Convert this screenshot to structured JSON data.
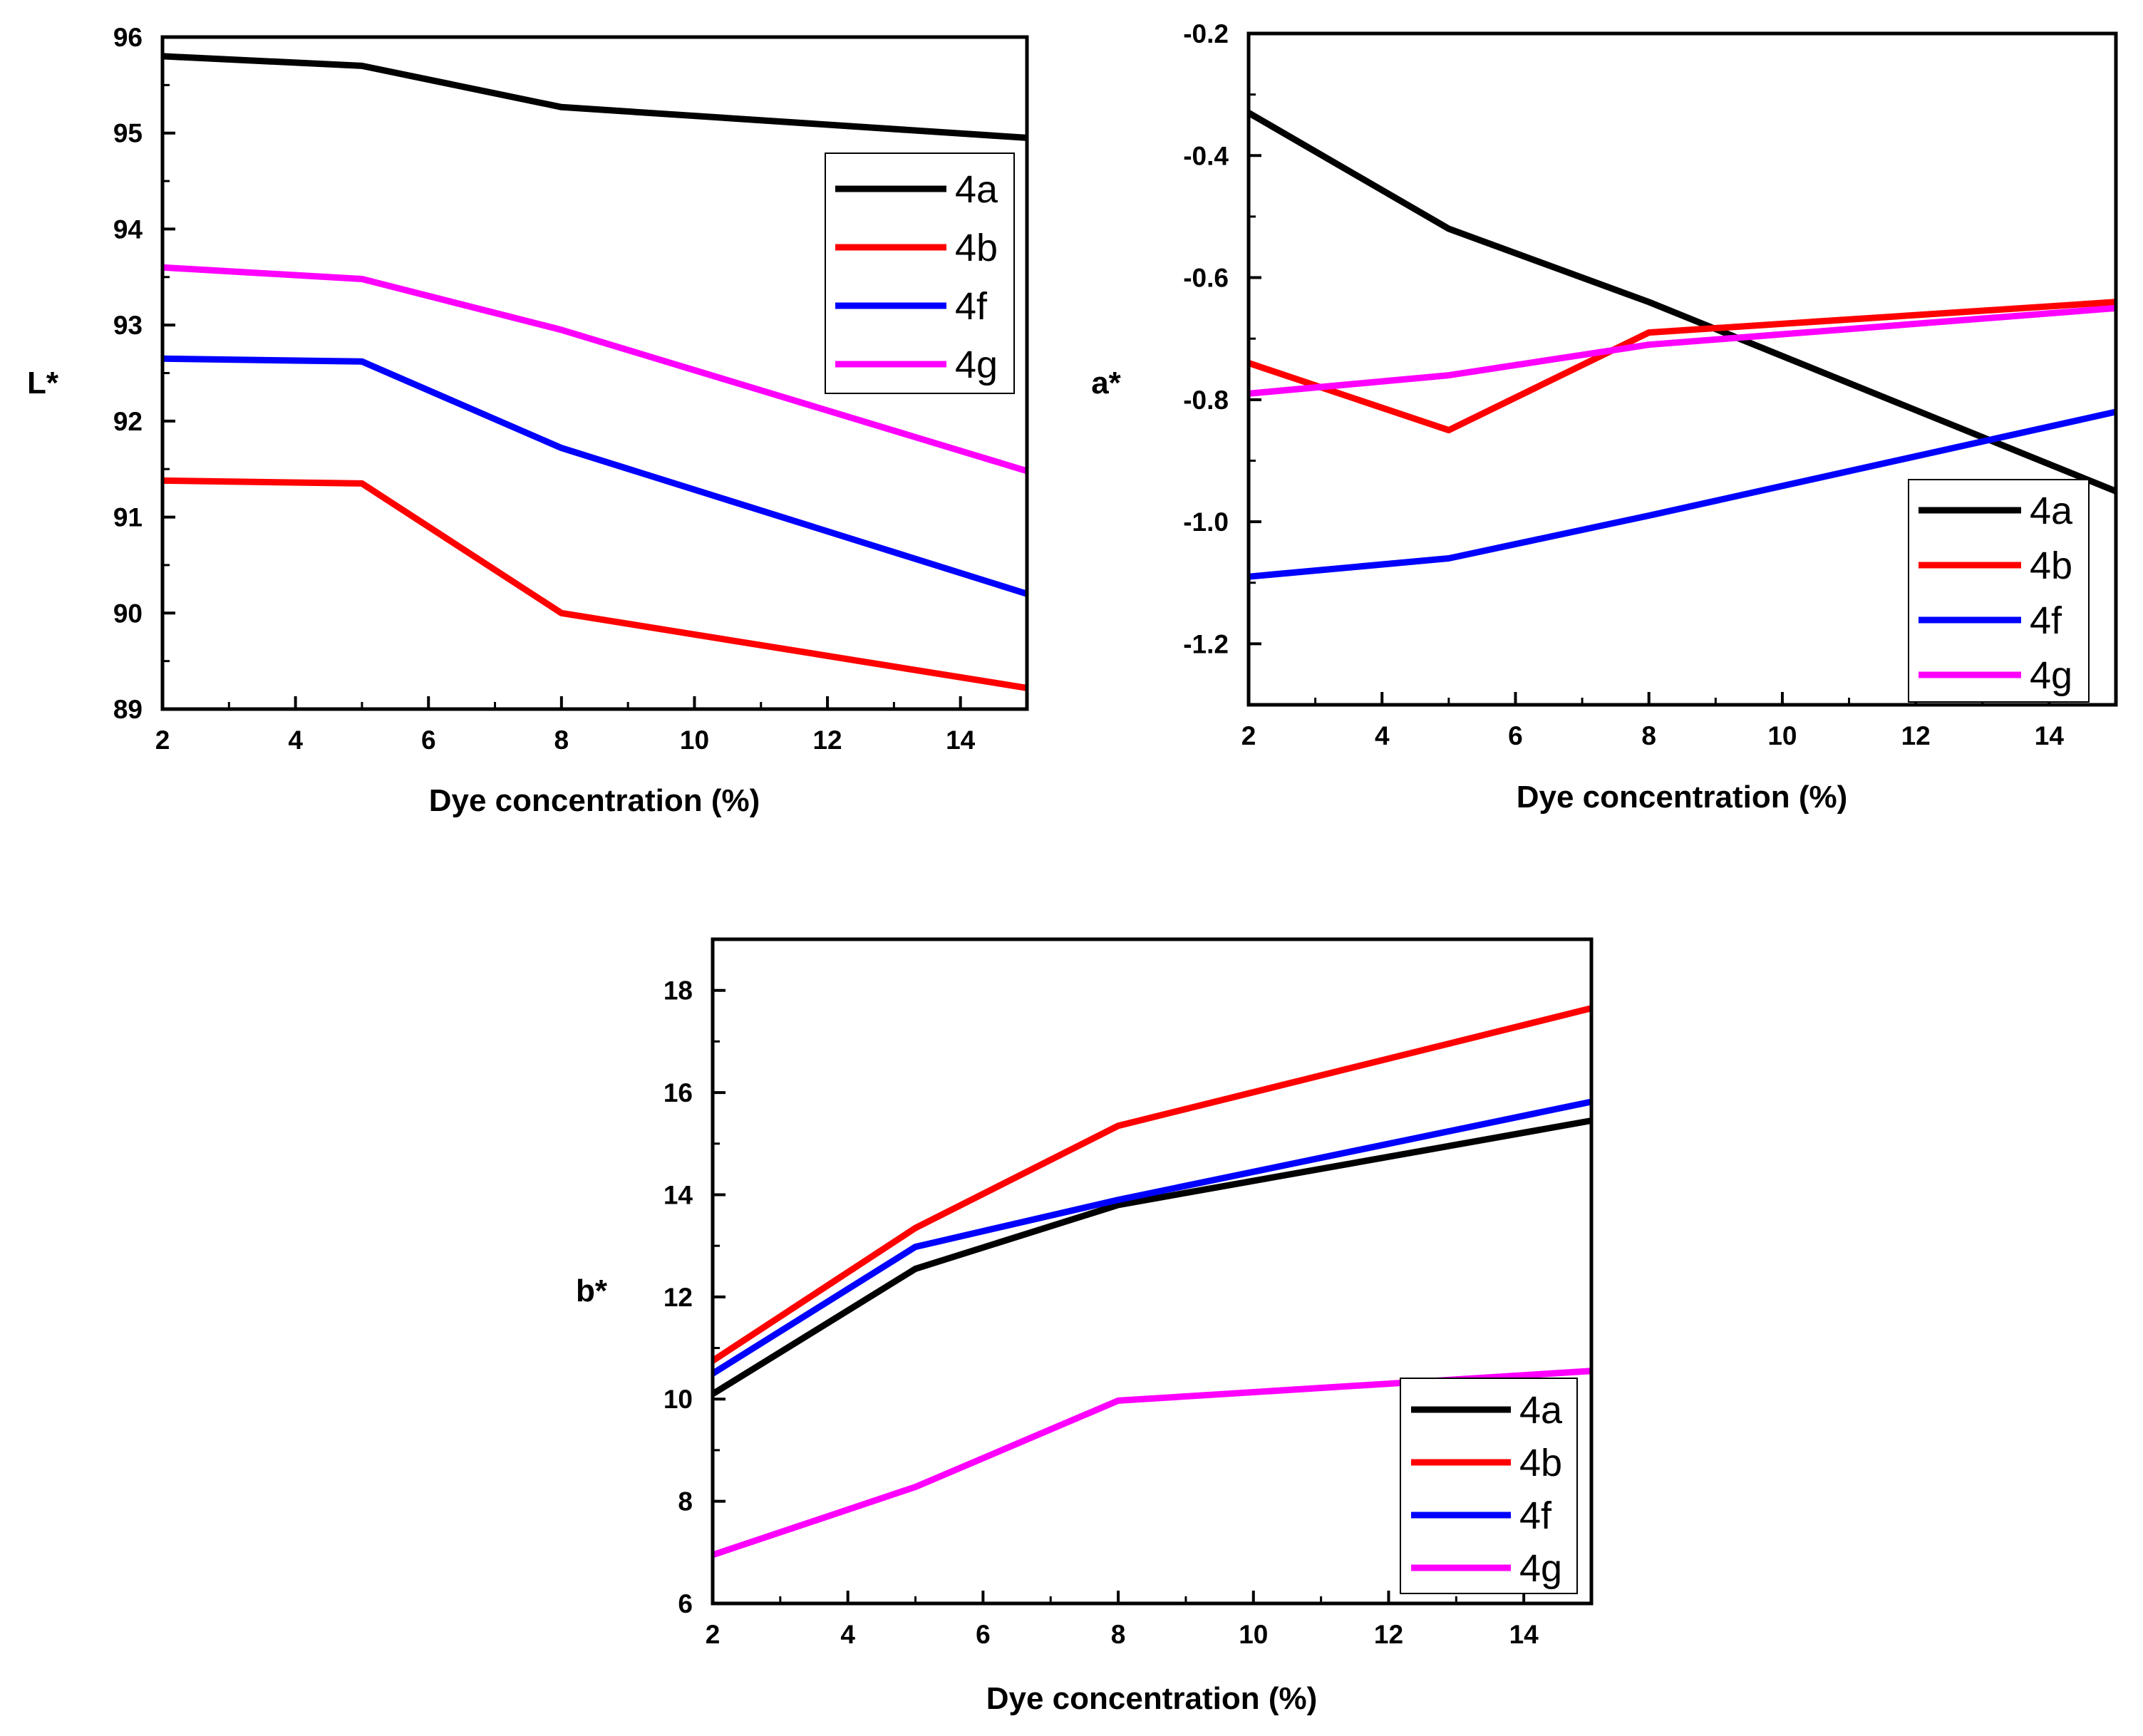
{
  "chart_data": [
    {
      "type": "line",
      "title": "",
      "xlabel": "Dye concentration (%)",
      "ylabel": "L*",
      "xlim": [
        2,
        15
      ],
      "ylim": [
        89,
        96
      ],
      "x_ticks": [
        2,
        4,
        6,
        8,
        10,
        12,
        14
      ],
      "y_ticks": [
        89,
        90,
        91,
        92,
        93,
        94,
        95,
        96
      ],
      "x_tick_labels": [
        "2",
        "4",
        "6",
        "8",
        "10",
        "12",
        "14"
      ],
      "y_tick_labels": [
        "89",
        "90",
        "91",
        "92",
        "93",
        "94",
        "95",
        "96"
      ],
      "legend_position": "top-right",
      "x": [
        2,
        5,
        8,
        15
      ],
      "series": [
        {
          "name": "4a",
          "color": "#000000",
          "values": [
            95.8,
            95.7,
            95.27,
            94.95
          ]
        },
        {
          "name": "4b",
          "color": "#ff0000",
          "values": [
            91.38,
            91.35,
            90.0,
            89.22
          ]
        },
        {
          "name": "4f",
          "color": "#0000ff",
          "values": [
            92.65,
            92.62,
            91.72,
            90.2
          ]
        },
        {
          "name": "4g",
          "color": "#ff00ff",
          "values": [
            93.6,
            93.48,
            92.95,
            91.48
          ]
        }
      ]
    },
    {
      "type": "line",
      "title": "",
      "xlabel": "Dye concentration (%)",
      "ylabel": "a*",
      "xlim": [
        2,
        15
      ],
      "ylim": [
        -1.3,
        -0.2
      ],
      "x_ticks": [
        2,
        4,
        6,
        8,
        10,
        12,
        14
      ],
      "y_ticks": [
        -1.2,
        -1.0,
        -0.8,
        -0.6,
        -0.4,
        -0.2
      ],
      "x_tick_labels": [
        "2",
        "4",
        "6",
        "8",
        "10",
        "12",
        "14"
      ],
      "y_tick_labels": [
        "-1.2",
        "-1.0",
        "-0.8",
        "-0.6",
        "-0.4",
        "-0.2"
      ],
      "legend_position": "bottom-right",
      "x": [
        2,
        5,
        8,
        15
      ],
      "series": [
        {
          "name": "4a",
          "color": "#000000",
          "values": [
            -0.33,
            -0.52,
            -0.64,
            -0.95
          ]
        },
        {
          "name": "4b",
          "color": "#ff0000",
          "values": [
            -0.74,
            -0.85,
            -0.69,
            -0.64
          ]
        },
        {
          "name": "4f",
          "color": "#0000ff",
          "values": [
            -1.09,
            -1.06,
            -0.99,
            -0.82
          ]
        },
        {
          "name": "4g",
          "color": "#ff00ff",
          "values": [
            -0.79,
            -0.76,
            -0.71,
            -0.65
          ]
        }
      ]
    },
    {
      "type": "line",
      "title": "",
      "xlabel": "Dye concentration (%)",
      "ylabel": "b*",
      "xlim": [
        2,
        15
      ],
      "ylim": [
        6,
        19
      ],
      "x_ticks": [
        2,
        4,
        6,
        8,
        10,
        12,
        14
      ],
      "y_ticks": [
        6,
        8,
        10,
        12,
        14,
        16,
        18
      ],
      "x_tick_labels": [
        "2",
        "4",
        "6",
        "8",
        "10",
        "12",
        "14"
      ],
      "y_tick_labels": [
        "6",
        "8",
        "10",
        "12",
        "14",
        "16",
        "18"
      ],
      "legend_position": "bottom-right",
      "x": [
        2,
        5,
        8,
        15
      ],
      "series": [
        {
          "name": "4a",
          "color": "#000000",
          "values": [
            10.1,
            12.55,
            13.8,
            15.45
          ]
        },
        {
          "name": "4b",
          "color": "#ff0000",
          "values": [
            10.75,
            13.35,
            15.35,
            17.65
          ]
        },
        {
          "name": "4f",
          "color": "#0000ff",
          "values": [
            10.5,
            12.98,
            13.9,
            15.82
          ]
        },
        {
          "name": "4g",
          "color": "#ff00ff",
          "values": [
            6.95,
            8.28,
            9.97,
            10.55
          ]
        }
      ]
    }
  ]
}
